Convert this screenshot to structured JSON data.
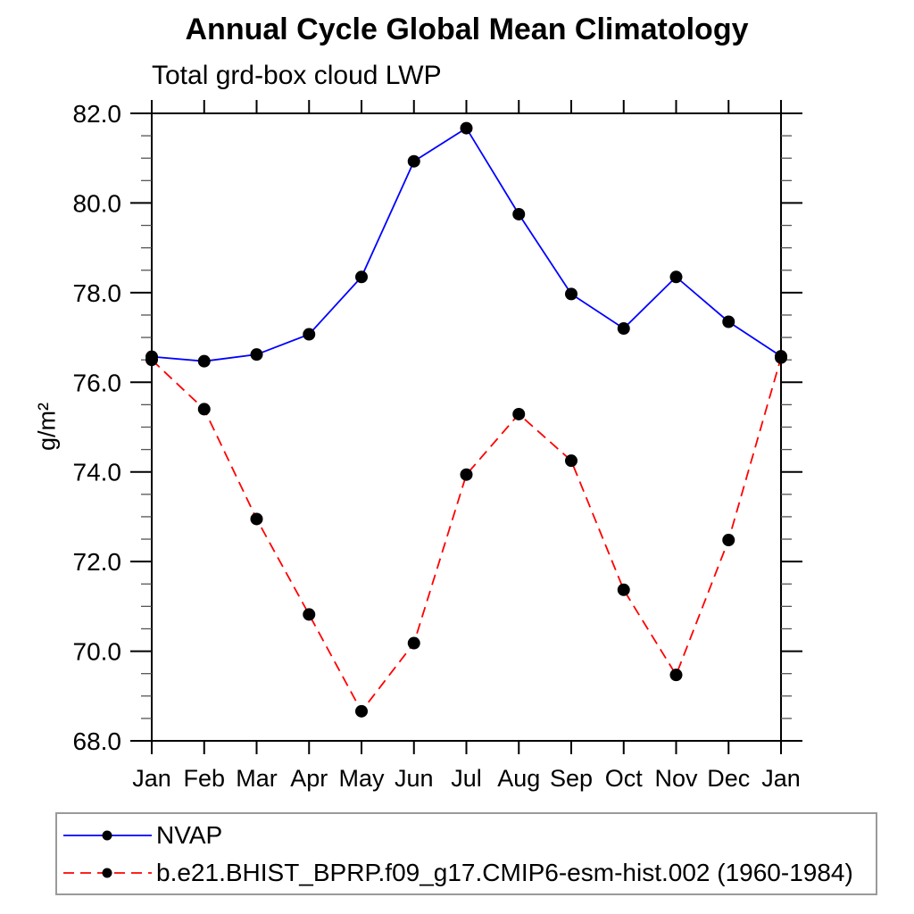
{
  "window": {
    "background": "#ffffff"
  },
  "chart_data": {
    "type": "line",
    "title": "Annual Cycle Global Mean Climatology",
    "subtitle": "Total grd-box cloud LWP",
    "ylabel": "g/m²",
    "xlabel": "",
    "x_categories": [
      "Jan",
      "Feb",
      "Mar",
      "Apr",
      "May",
      "Jun",
      "Jul",
      "Aug",
      "Sep",
      "Oct",
      "Nov",
      "Dec",
      "Jan"
    ],
    "ylim": [
      68.0,
      82.0
    ],
    "ytick_major": [
      68.0,
      70.0,
      72.0,
      74.0,
      76.0,
      78.0,
      80.0,
      82.0
    ],
    "ytick_minor_step": 0.5,
    "grid": false,
    "legend_position": "bottom-left-box",
    "frame_color": "#000000",
    "series": [
      {
        "name": "NVAP",
        "color": "#0000ff",
        "line_style": "solid",
        "marker": "filled-circle",
        "marker_color": "#000000",
        "values": [
          76.57,
          76.47,
          76.62,
          77.07,
          78.35,
          80.93,
          81.67,
          79.75,
          77.97,
          77.2,
          78.35,
          77.35,
          76.58
        ]
      },
      {
        "name": "b.e21.BHIST_BPRP.f09_g17.CMIP6-esm-hist.002 (1960-1984)",
        "color": "#ff0000",
        "line_style": "dashed",
        "marker": "filled-circle",
        "marker_color": "#000000",
        "values": [
          76.5,
          75.4,
          72.95,
          70.82,
          68.66,
          70.18,
          73.94,
          75.29,
          74.25,
          71.37,
          69.47,
          72.48,
          76.55
        ]
      }
    ]
  }
}
